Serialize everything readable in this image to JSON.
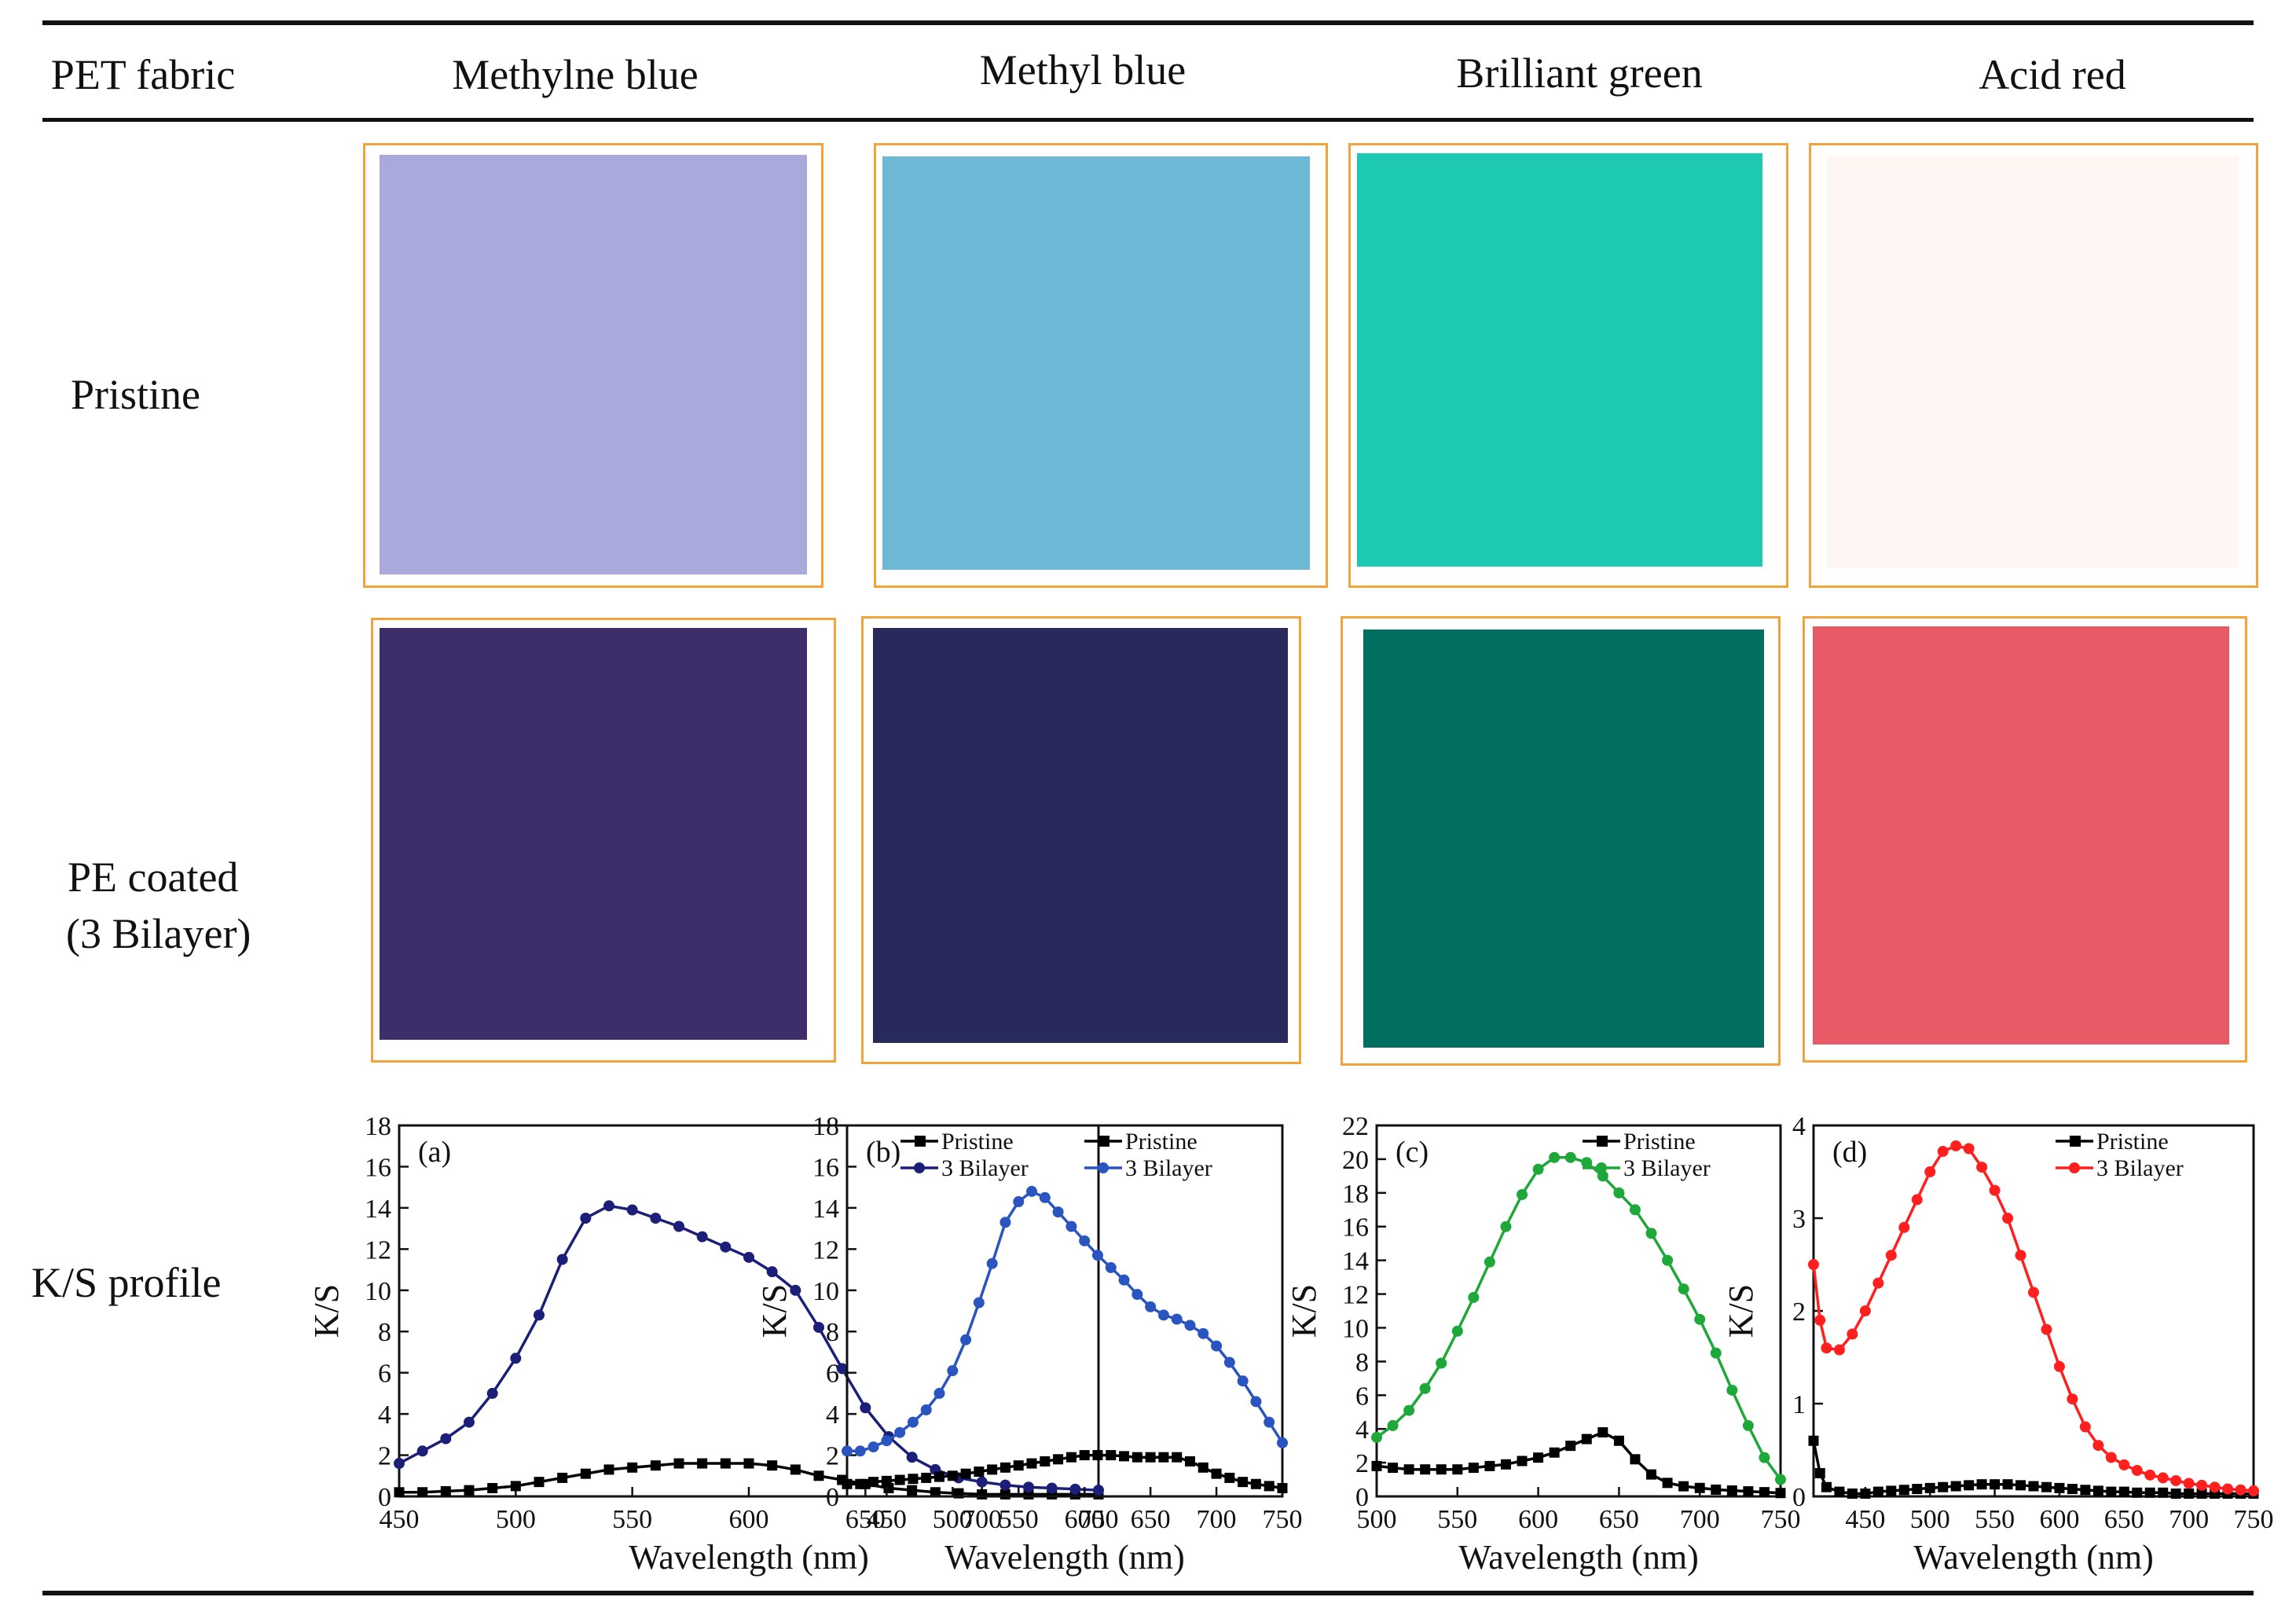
{
  "table": {
    "headers": [
      "PET fabric",
      "Methylne blue",
      "Methyl blue",
      "Brilliant green",
      "Acid red"
    ],
    "rows": {
      "pristine": "Pristine",
      "coated_line1": "PE coated",
      "coated_line2": "(3 Bilayer)",
      "ks": "K/S profile"
    }
  },
  "swatch_colors": {
    "pristine": [
      "#a9a9dc",
      "#6db8d4",
      "#1ec9b4",
      "#fdf6f2"
    ],
    "coated": [
      "#3d2d6b",
      "#272a5a",
      "#006f5f",
      "#e95a67"
    ]
  },
  "chart_data": [
    {
      "type": "line",
      "panel": "(a)",
      "xlabel": "Wavelength (nm)",
      "ylabel": "K/S",
      "xlim": [
        450,
        750
      ],
      "ylim": [
        0,
        18
      ],
      "xticks": [
        450,
        500,
        550,
        600,
        650,
        700,
        750
      ],
      "yticks": [
        0,
        2,
        4,
        6,
        8,
        10,
        12,
        14,
        16,
        18
      ],
      "legend_position": "top-right",
      "series": [
        {
          "name": "Pristine",
          "color": "#000000",
          "marker": "square",
          "x": [
            450,
            460,
            470,
            480,
            490,
            500,
            510,
            520,
            530,
            540,
            550,
            560,
            570,
            580,
            590,
            600,
            610,
            620,
            630,
            640,
            650,
            660,
            670,
            680,
            690,
            700,
            710,
            720,
            730,
            740,
            750
          ],
          "y": [
            0.2,
            0.2,
            0.25,
            0.3,
            0.4,
            0.5,
            0.7,
            0.9,
            1.1,
            1.3,
            1.4,
            1.5,
            1.6,
            1.6,
            1.6,
            1.6,
            1.5,
            1.3,
            1.0,
            0.8,
            0.6,
            0.4,
            0.3,
            0.2,
            0.15,
            0.1,
            0.1,
            0.1,
            0.1,
            0.1,
            0.1
          ]
        },
        {
          "name": "3 Bilayer",
          "color": "#1c1f78",
          "marker": "circle",
          "x": [
            450,
            460,
            470,
            480,
            490,
            500,
            510,
            520,
            530,
            540,
            550,
            560,
            570,
            580,
            590,
            600,
            610,
            620,
            630,
            640,
            650,
            660,
            670,
            680,
            690,
            700,
            710,
            720,
            730,
            740,
            750
          ],
          "y": [
            1.6,
            2.2,
            2.8,
            3.6,
            5.0,
            6.7,
            8.8,
            11.5,
            13.5,
            14.1,
            13.9,
            13.5,
            13.1,
            12.6,
            12.1,
            11.6,
            10.9,
            10.0,
            8.2,
            6.2,
            4.3,
            2.9,
            1.9,
            1.3,
            0.9,
            0.7,
            0.55,
            0.45,
            0.4,
            0.35,
            0.3
          ]
        }
      ]
    },
    {
      "type": "line",
      "panel": "(b)",
      "xlabel": "Wavelength (nm)",
      "ylabel": "K/S",
      "xlim": [
        420,
        750
      ],
      "ylim": [
        0,
        18
      ],
      "xticks": [
        450,
        500,
        550,
        600,
        650,
        700,
        750
      ],
      "yticks": [
        0,
        2,
        4,
        6,
        8,
        10,
        12,
        14,
        16,
        18
      ],
      "legend_position": "top-right",
      "series": [
        {
          "name": "Pristine",
          "color": "#000000",
          "marker": "square",
          "x": [
            420,
            430,
            440,
            450,
            460,
            470,
            480,
            490,
            500,
            510,
            520,
            530,
            540,
            550,
            560,
            570,
            580,
            590,
            600,
            610,
            620,
            630,
            640,
            650,
            660,
            670,
            680,
            690,
            700,
            710,
            720,
            730,
            740,
            750
          ],
          "y": [
            0.6,
            0.6,
            0.7,
            0.75,
            0.8,
            0.85,
            0.9,
            0.95,
            1.0,
            1.1,
            1.2,
            1.3,
            1.4,
            1.5,
            1.6,
            1.7,
            1.8,
            1.9,
            2.0,
            2.0,
            2.0,
            1.95,
            1.9,
            1.9,
            1.9,
            1.9,
            1.7,
            1.4,
            1.1,
            0.9,
            0.7,
            0.6,
            0.5,
            0.4
          ]
        },
        {
          "name": "3 Bilayer",
          "color": "#2a55c0",
          "marker": "circle",
          "x": [
            420,
            430,
            440,
            450,
            460,
            470,
            480,
            490,
            500,
            510,
            520,
            530,
            540,
            550,
            560,
            570,
            580,
            590,
            600,
            610,
            620,
            630,
            640,
            650,
            660,
            670,
            680,
            690,
            700,
            710,
            720,
            730,
            740,
            750
          ],
          "y": [
            2.2,
            2.2,
            2.4,
            2.7,
            3.1,
            3.6,
            4.2,
            5.0,
            6.1,
            7.6,
            9.4,
            11.3,
            13.3,
            14.3,
            14.8,
            14.5,
            13.8,
            13.1,
            12.4,
            11.7,
            11.1,
            10.5,
            9.8,
            9.2,
            8.8,
            8.6,
            8.3,
            7.9,
            7.3,
            6.5,
            5.6,
            4.6,
            3.6,
            2.6
          ]
        }
      ]
    },
    {
      "type": "line",
      "panel": "(c)",
      "xlabel": "Wavelength (nm)",
      "ylabel": "K/S",
      "xlim": [
        500,
        750
      ],
      "ylim": [
        0,
        22
      ],
      "xticks": [
        500,
        550,
        600,
        650,
        700,
        750
      ],
      "yticks": [
        0,
        2,
        4,
        6,
        8,
        10,
        12,
        14,
        16,
        18,
        20,
        22
      ],
      "legend_position": "top-right",
      "series": [
        {
          "name": "Pristine",
          "color": "#000000",
          "marker": "square",
          "x": [
            500,
            510,
            520,
            530,
            540,
            550,
            560,
            570,
            580,
            590,
            600,
            610,
            620,
            630,
            640,
            650,
            660,
            670,
            680,
            690,
            700,
            710,
            720,
            730,
            740,
            750
          ],
          "y": [
            1.8,
            1.7,
            1.6,
            1.6,
            1.6,
            1.6,
            1.7,
            1.8,
            1.9,
            2.1,
            2.3,
            2.6,
            3.0,
            3.4,
            3.8,
            3.3,
            2.2,
            1.3,
            0.8,
            0.6,
            0.5,
            0.4,
            0.35,
            0.3,
            0.25,
            0.2
          ]
        },
        {
          "name": "3 Bilayer",
          "color": "#1ea83a",
          "marker": "circle",
          "x": [
            500,
            510,
            520,
            530,
            540,
            550,
            560,
            570,
            580,
            590,
            600,
            610,
            620,
            630,
            640,
            650,
            660,
            670,
            680,
            690,
            700,
            710,
            720,
            730,
            740,
            750
          ],
          "y": [
            3.5,
            4.2,
            5.1,
            6.4,
            7.9,
            9.8,
            11.8,
            13.9,
            16.0,
            17.9,
            19.4,
            20.1,
            20.1,
            19.8,
            19.0,
            18.0,
            17.0,
            15.6,
            14.0,
            12.3,
            10.5,
            8.5,
            6.3,
            4.2,
            2.3,
            1.0
          ]
        }
      ]
    },
    {
      "type": "line",
      "panel": "(d)",
      "xlabel": "Wavelength (nm)",
      "ylabel": "K/S",
      "xlim": [
        410,
        750
      ],
      "ylim": [
        0,
        4
      ],
      "xticks": [
        450,
        500,
        550,
        600,
        650,
        700,
        750
      ],
      "yticks": [
        0,
        1,
        2,
        3,
        4
      ],
      "legend_position": "top-right",
      "series": [
        {
          "name": "Pristine",
          "color": "#000000",
          "marker": "square",
          "x": [
            410,
            415,
            420,
            430,
            440,
            450,
            460,
            470,
            480,
            490,
            500,
            510,
            520,
            530,
            540,
            550,
            560,
            570,
            580,
            590,
            600,
            610,
            620,
            630,
            640,
            650,
            660,
            670,
            680,
            690,
            700,
            710,
            720,
            730,
            740,
            750
          ],
          "y": [
            0.6,
            0.25,
            0.1,
            0.05,
            0.03,
            0.03,
            0.05,
            0.06,
            0.07,
            0.08,
            0.09,
            0.1,
            0.11,
            0.12,
            0.13,
            0.13,
            0.13,
            0.12,
            0.11,
            0.1,
            0.09,
            0.08,
            0.07,
            0.06,
            0.05,
            0.05,
            0.04,
            0.04,
            0.04,
            0.03,
            0.03,
            0.03,
            0.03,
            0.03,
            0.03,
            0.03
          ]
        },
        {
          "name": "3 Bilayer",
          "color": "#ff1f1f",
          "marker": "circle",
          "x": [
            410,
            415,
            420,
            430,
            440,
            450,
            460,
            470,
            480,
            490,
            500,
            510,
            520,
            530,
            540,
            550,
            560,
            570,
            580,
            590,
            600,
            610,
            620,
            630,
            640,
            650,
            660,
            670,
            680,
            690,
            700,
            710,
            720,
            730,
            740,
            750
          ],
          "y": [
            2.5,
            1.9,
            1.6,
            1.58,
            1.75,
            2.0,
            2.3,
            2.6,
            2.9,
            3.2,
            3.5,
            3.72,
            3.78,
            3.75,
            3.55,
            3.3,
            3.0,
            2.6,
            2.2,
            1.8,
            1.4,
            1.05,
            0.75,
            0.55,
            0.42,
            0.34,
            0.28,
            0.23,
            0.2,
            0.17,
            0.14,
            0.12,
            0.1,
            0.08,
            0.07,
            0.06
          ]
        }
      ]
    }
  ]
}
